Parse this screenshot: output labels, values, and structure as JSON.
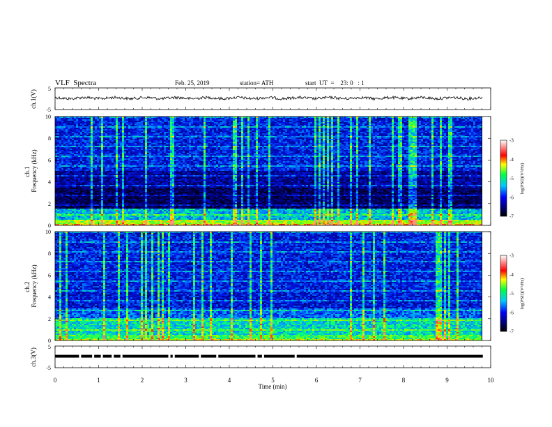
{
  "header": {
    "title": "VLF  Spectra",
    "date": "Feb. 25, 2019",
    "station": "station= ATH",
    "start": "start  UT  =    23: 0   : 1"
  },
  "chart_data": [
    {
      "type": "line",
      "id": "ch1-voltage",
      "ylabel": "ch.1(V)",
      "ylim": [
        -5,
        5
      ],
      "yticks": [
        "5",
        "-5"
      ],
      "xlim": [
        0,
        10
      ],
      "data_end_min": 9.82,
      "description_level": 0.3,
      "color": "#000000"
    },
    {
      "type": "heatmap",
      "id": "ch1-spectrogram",
      "ylabel": "ch.1\nFrequency (kHz)",
      "ylim": [
        0,
        10
      ],
      "yticks": [
        "0",
        "2",
        "4",
        "6",
        "8",
        "10"
      ],
      "xlim": [
        0,
        10
      ],
      "data_end_min": 9.82,
      "colorbar": {
        "label": "log(PSD)(V²/Hz)",
        "range": [
          -7,
          -3
        ],
        "ticks": [
          "-3",
          "-4",
          "-5",
          "-6",
          "-7"
        ]
      }
    },
    {
      "type": "heatmap",
      "id": "ch2-spectrogram",
      "ylabel": "ch.2\nFrequency (kHz)",
      "ylim": [
        0,
        10
      ],
      "yticks": [
        "0",
        "2",
        "4",
        "6",
        "8",
        "10"
      ],
      "xlim": [
        0,
        10
      ],
      "data_end_min": 9.82,
      "colorbar": {
        "label": "log(PSD)(V²/Hz)",
        "range": [
          -7,
          -3
        ],
        "ticks": [
          "-3",
          "-4",
          "-5",
          "-6",
          "-7"
        ]
      }
    },
    {
      "type": "line",
      "id": "ch3-voltage",
      "ylabel": "ch.3(V)",
      "ylim": [
        -5,
        5
      ],
      "yticks": [
        "5",
        "-5"
      ],
      "xlim": [
        0,
        10
      ],
      "xticks": [
        "0",
        "1",
        "2",
        "3",
        "4",
        "5",
        "6",
        "7",
        "8",
        "9",
        "10"
      ],
      "xlabel": "Time  (min)",
      "data_end_min": 9.82,
      "level": 0.3,
      "color": "#000000"
    }
  ]
}
